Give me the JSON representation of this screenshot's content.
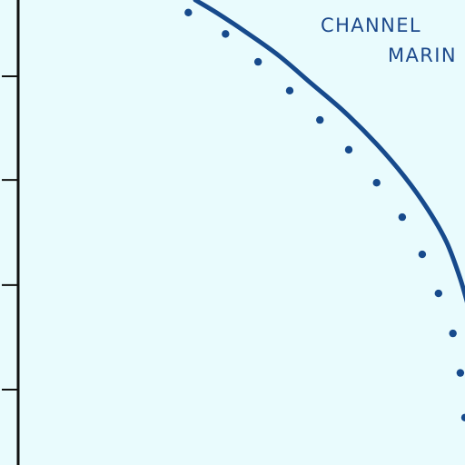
{
  "colors": {
    "background": "#e9fbfd",
    "axis": "#111111",
    "series": "#174a8c",
    "text": "#1d4a8c"
  },
  "chart_data": {
    "type": "line",
    "annotations": [
      "CHANNEL",
      "MARIN"
    ],
    "grid": false,
    "legend": "none",
    "series": [
      {
        "style": "solid",
        "points": [
          [
            0.42,
            0.0
          ],
          [
            0.47,
            0.03
          ],
          [
            0.53,
            0.07
          ],
          [
            0.6,
            0.12
          ],
          [
            0.67,
            0.18
          ],
          [
            0.74,
            0.24
          ],
          [
            0.81,
            0.31
          ],
          [
            0.87,
            0.38
          ],
          [
            0.92,
            0.45
          ],
          [
            0.96,
            0.52
          ],
          [
            0.99,
            0.6
          ],
          [
            1.01,
            0.67
          ]
        ]
      },
      {
        "style": "dotted",
        "points": [
          [
            0.405,
            0.027
          ],
          [
            0.485,
            0.073
          ],
          [
            0.555,
            0.133
          ],
          [
            0.623,
            0.195
          ],
          [
            0.688,
            0.258
          ],
          [
            0.75,
            0.322
          ],
          [
            0.81,
            0.393
          ],
          [
            0.865,
            0.467
          ],
          [
            0.908,
            0.547
          ],
          [
            0.943,
            0.631
          ],
          [
            0.974,
            0.717
          ],
          [
            0.99,
            0.802
          ],
          [
            1.0,
            0.898
          ]
        ]
      }
    ],
    "yaxis": {
      "ticks": [
        0.164,
        0.387,
        0.613,
        0.838
      ]
    },
    "xlim": [
      0,
      1
    ],
    "ylim": [
      0,
      1
    ]
  }
}
